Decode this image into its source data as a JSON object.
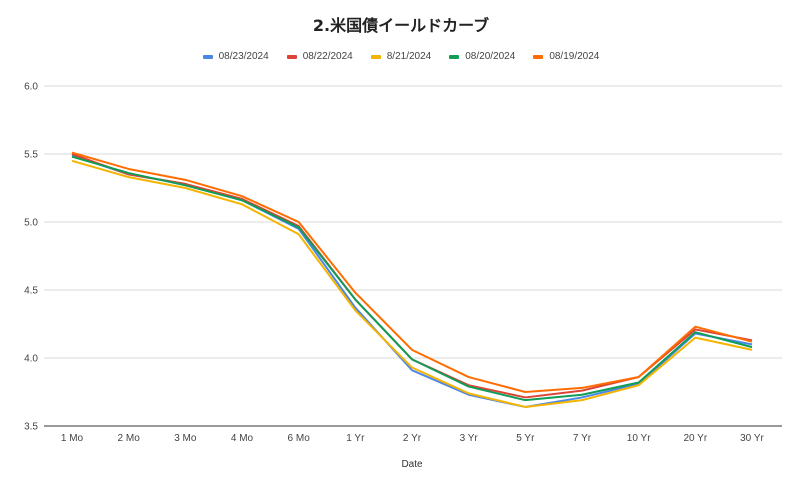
{
  "chart_data": {
    "type": "line",
    "title": "2.米国債イールドカーブ",
    "xlabel": "Date",
    "ylabel": "",
    "ylim": [
      3.5,
      6.0
    ],
    "yticks": [
      "3.5",
      "4.0",
      "4.5",
      "5.0",
      "5.5",
      "6.0"
    ],
    "grid": true,
    "legend": "top",
    "categories": [
      "1 Mo",
      "2 Mo",
      "3 Mo",
      "4 Mo",
      "6 Mo",
      "1 Yr",
      "2 Yr",
      "3 Yr",
      "5 Yr",
      "7 Yr",
      "10 Yr",
      "20 Yr",
      "30 Yr"
    ],
    "series": [
      {
        "name": "08/23/2024",
        "color": "#4a86e8",
        "values": [
          5.49,
          5.35,
          5.28,
          5.16,
          4.95,
          4.37,
          3.91,
          3.73,
          3.64,
          3.71,
          3.81,
          4.18,
          4.1
        ]
      },
      {
        "name": "08/22/2024",
        "color": "#db4437",
        "values": [
          5.5,
          5.35,
          5.28,
          5.17,
          4.97,
          4.43,
          3.99,
          3.8,
          3.71,
          3.76,
          3.86,
          4.21,
          4.13
        ]
      },
      {
        "name": "8/21/2024",
        "color": "#f4b400",
        "values": [
          5.45,
          5.33,
          5.25,
          5.13,
          4.91,
          4.35,
          3.93,
          3.74,
          3.64,
          3.69,
          3.8,
          4.15,
          4.06
        ]
      },
      {
        "name": "08/20/2024",
        "color": "#0f9d58",
        "values": [
          5.48,
          5.36,
          5.27,
          5.16,
          4.96,
          4.43,
          3.99,
          3.79,
          3.69,
          3.73,
          3.82,
          4.19,
          4.08
        ]
      },
      {
        "name": "08/19/2024",
        "color": "#ff6d01",
        "values": [
          5.51,
          5.39,
          5.31,
          5.19,
          5.0,
          4.48,
          4.06,
          3.86,
          3.75,
          3.78,
          3.86,
          4.23,
          4.12
        ]
      }
    ]
  }
}
